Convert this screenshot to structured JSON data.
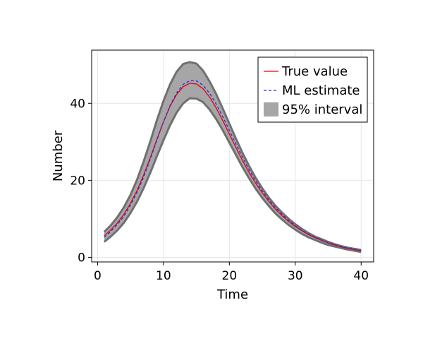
{
  "chart_data": {
    "type": "line",
    "xlabel": "Time",
    "ylabel": "Number",
    "xlim": [
      -0.9,
      41.9
    ],
    "ylim": [
      -1.2,
      53.8
    ],
    "xticks": [
      0,
      10,
      20,
      30,
      40
    ],
    "yticks": [
      0,
      20,
      40
    ],
    "grid": true,
    "legend_position": "top-right",
    "x": [
      1,
      2,
      3,
      4,
      5,
      6,
      7,
      8,
      9,
      10,
      11,
      12,
      13,
      14,
      15,
      16,
      17,
      18,
      19,
      20,
      21,
      22,
      23,
      24,
      25,
      26,
      27,
      28,
      29,
      30,
      31,
      32,
      33,
      34,
      35,
      36,
      37,
      38,
      39,
      40
    ],
    "series": [
      {
        "name": "True value",
        "style": "solid",
        "color": "#e8000b",
        "values": [
          5.6,
          7.1,
          8.9,
          11.2,
          14.0,
          17.4,
          21.4,
          25.9,
          30.6,
          35.2,
          39.2,
          42.3,
          44.3,
          45.2,
          45.0,
          43.8,
          41.6,
          38.8,
          35.5,
          32.0,
          28.5,
          25.1,
          22.0,
          19.2,
          16.7,
          14.5,
          12.5,
          10.8,
          9.3,
          8.0,
          6.9,
          5.9,
          5.1,
          4.4,
          3.7,
          3.2,
          2.7,
          2.3,
          2.0,
          1.7
        ]
      },
      {
        "name": "ML estimate",
        "style": "dashed",
        "color": "#2a2ae8",
        "values": [
          5.2,
          6.7,
          8.5,
          10.7,
          13.5,
          16.9,
          20.9,
          25.5,
          30.4,
          35.2,
          39.4,
          42.7,
          44.9,
          45.9,
          45.8,
          44.7,
          42.6,
          39.8,
          36.5,
          33.0,
          29.4,
          25.9,
          22.7,
          19.8,
          17.2,
          14.9,
          12.9,
          11.1,
          9.6,
          8.2,
          7.0,
          6.0,
          5.2,
          4.5,
          3.8,
          3.3,
          2.8,
          2.4,
          2.1,
          1.8
        ]
      }
    ],
    "interval": {
      "name": "95% interval",
      "color": "#a6a6a6",
      "edge_color": "#707070",
      "lower": [
        4.0,
        5.4,
        7.0,
        9.0,
        11.5,
        14.5,
        18.0,
        22.0,
        26.2,
        30.4,
        34.3,
        37.6,
        40.0,
        41.3,
        41.2,
        40.3,
        38.4,
        35.9,
        33.0,
        29.8,
        26.6,
        23.4,
        20.5,
        17.8,
        15.4,
        13.3,
        11.4,
        9.8,
        8.4,
        7.2,
        6.1,
        5.2,
        4.5,
        3.8,
        3.2,
        2.8,
        2.4,
        2.0,
        1.7,
        1.4
      ],
      "upper": [
        6.6,
        8.3,
        10.4,
        13.0,
        16.2,
        20.2,
        24.9,
        30.1,
        35.6,
        40.6,
        44.9,
        48.2,
        50.2,
        50.7,
        50.3,
        48.5,
        45.7,
        42.4,
        38.6,
        34.7,
        30.8,
        27.1,
        23.7,
        20.6,
        17.9,
        15.5,
        13.4,
        11.6,
        10.0,
        8.6,
        7.4,
        6.3,
        5.4,
        4.7,
        4.0,
        3.4,
        2.9,
        2.5,
        2.2,
        1.9
      ]
    }
  }
}
